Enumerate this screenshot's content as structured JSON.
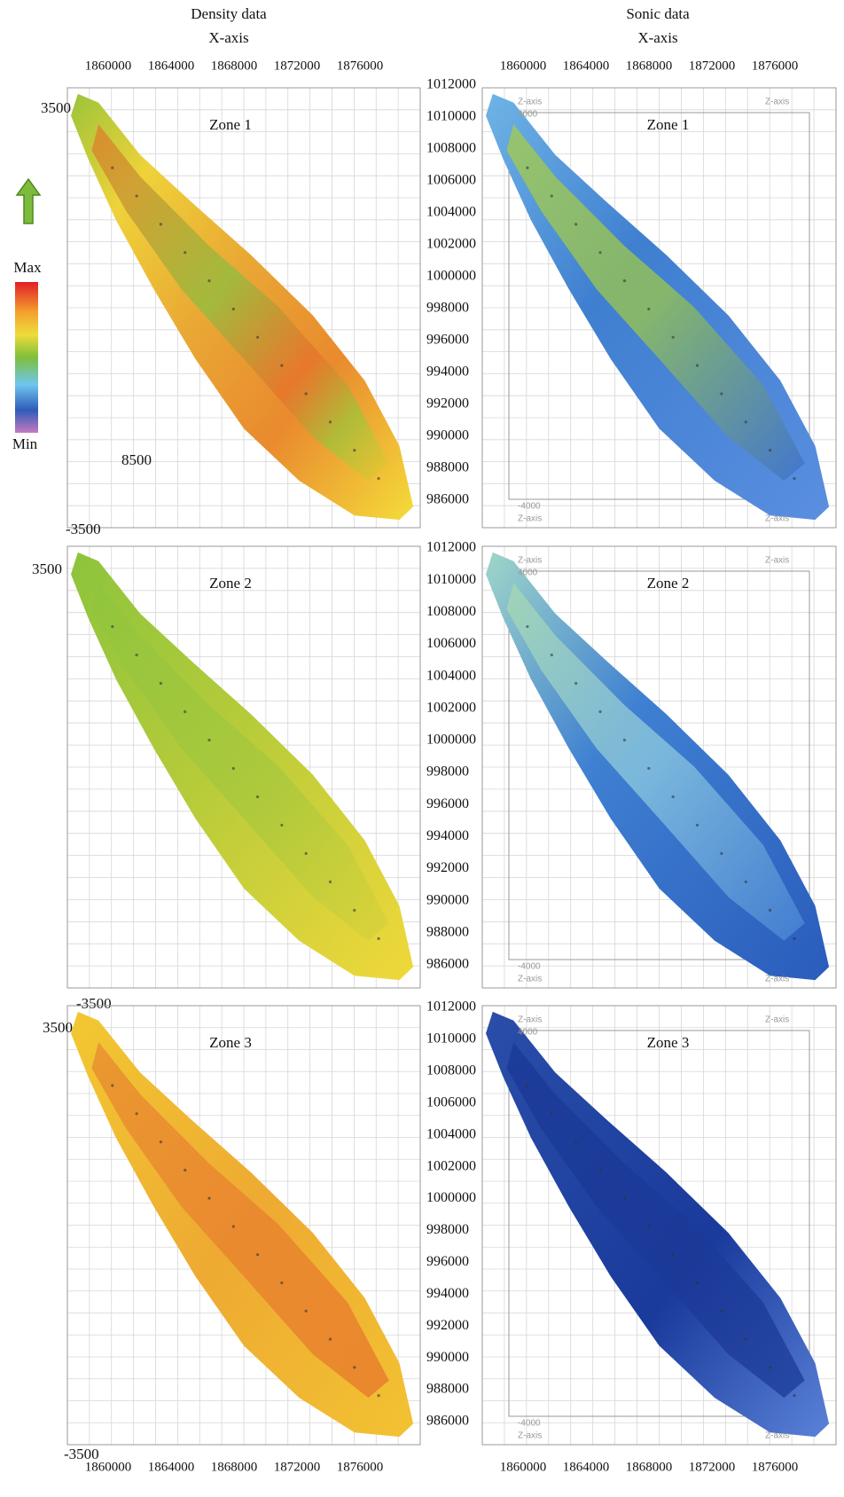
{
  "legend": {
    "max": "Max",
    "min": "Min"
  },
  "columns": [
    {
      "title": "Density data",
      "axis": "X-axis"
    },
    {
      "title": "Sonic data",
      "axis": "X-axis"
    }
  ],
  "x_ticks": [
    1860000,
    1864000,
    1868000,
    1872000,
    1876000
  ],
  "y_ticks": [
    1012000,
    1010000,
    1008000,
    1006000,
    1004000,
    1002000,
    1000000,
    998000,
    996000,
    994000,
    992000,
    990000,
    988000,
    986000
  ],
  "z_labels": {
    "top": 3500,
    "bottom": -3500,
    "extra": 8500
  },
  "box_labels": {
    "axis": "Z-axis",
    "top": 4000,
    "bottom": -4000
  },
  "zones": [
    "Zone 1",
    "Zone 2",
    "Zone 3"
  ]
}
